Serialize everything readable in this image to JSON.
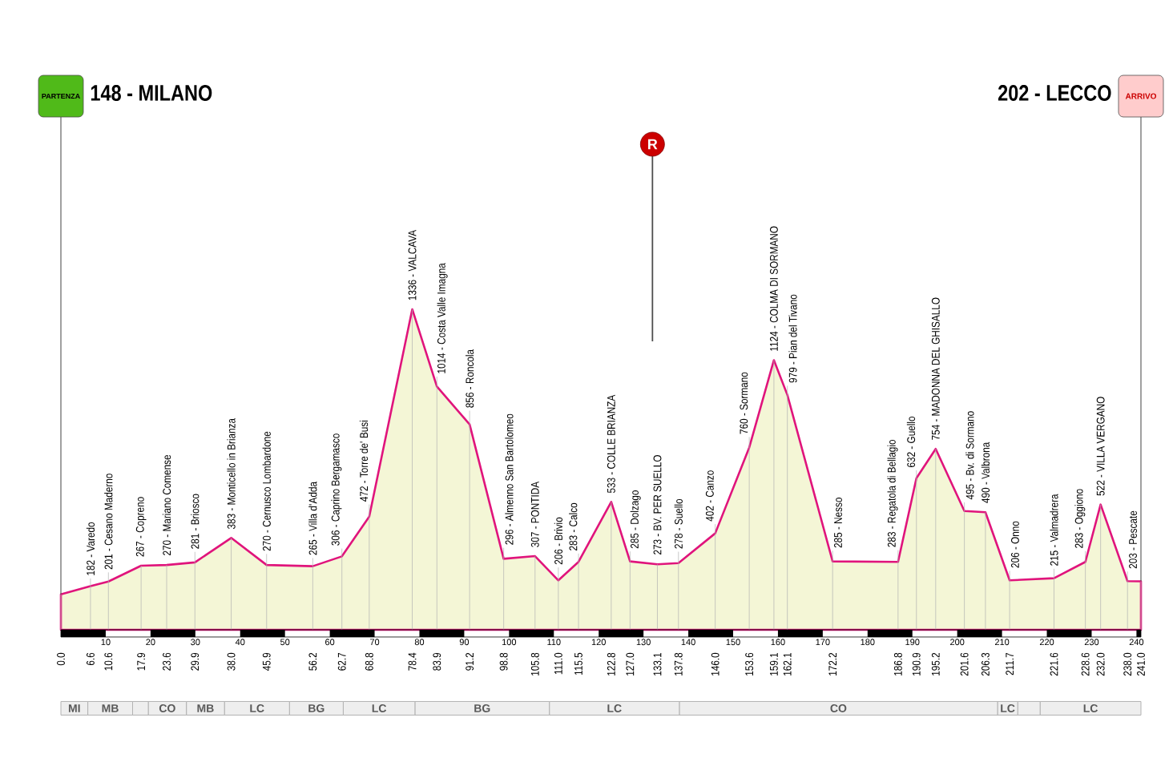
{
  "chart_data": [
    {
      "type": "area",
      "color": "#e0147c",
      "grid": "x",
      "tick_labels": "x",
      "x": [
        0,
        6.6,
        10.6,
        17.9,
        23.6,
        29.9,
        38,
        45.9,
        56.2,
        62.7,
        68.8,
        78.4,
        83.9,
        91.2,
        98.8,
        105.8,
        111,
        115.5,
        122.8,
        127,
        133.1,
        137.8,
        146,
        153.6,
        159.1,
        162.1,
        172.2,
        186.8,
        190.9,
        195.2,
        201.6,
        206.3,
        211.7,
        221.6,
        228.6,
        232,
        238,
        241
      ],
      "values": [
        148,
        182,
        201,
        267,
        270,
        281,
        383,
        270,
        265,
        306,
        472,
        1336,
        1014,
        856,
        296,
        307,
        206,
        283,
        533,
        285,
        273,
        278,
        402,
        760,
        1124,
        979,
        285,
        283,
        632,
        754,
        495,
        490,
        206,
        215,
        283,
        522,
        203,
        202
      ],
      "value_labels": [
        null,
        "182 - Varedo",
        "201 - Cesano Maderno",
        "267 - Copreno",
        "270 - Mariano Comense",
        "281 - Briosco",
        "383 - Monticello in Brianza",
        "270 - Cernusco Lombardone",
        "265 - Villa d'Adda",
        "306 - Caprino Bergamasco",
        "472 - Torre de' Busi",
        "1336 - VALCAVA",
        "1014 - Costa Valle Imagna",
        "856 - Roncola",
        "296 - Almenno San Bartolomeo",
        "307 - PONTIDA",
        "206 - Brivio",
        "283 - Calco",
        "533 - COLLE BRIANZA",
        "285 - Dolzago",
        "273 - BV. PER SUELLO",
        "278 - Suello",
        "402 - Canzo",
        "760 - Sormano",
        "1124 - COLMA DI SORMANO",
        "979 - Pian del Tivano",
        "285 - Nesso",
        "283 - Regatola di Bellagio",
        "632 - Guello",
        "754 - MADONNA DEL GHISALLO",
        "495 - Bv. di Sormano",
        "490 - Valbrona",
        "206 - Onno",
        "215 - Valmadrera",
        "283 - Oggiono",
        "522 - VILLA VERGANO",
        "203 - Pescate",
        null
      ],
      "xlim": [
        0,
        241
      ],
      "xticks": [
        {
          "value": 0,
          "label": "0.0"
        },
        6.6,
        10.6,
        17.9,
        23.6,
        29.9,
        {
          "value": 38,
          "label": "38.0"
        },
        45.9,
        56.2,
        62.7,
        68.8,
        78.4,
        83.9,
        91.2,
        98.8,
        105.8,
        {
          "value": 111,
          "label": "111.0"
        },
        115.5,
        122.8,
        {
          "value": 127,
          "label": "127.0"
        },
        133.1,
        137.8,
        {
          "value": 146,
          "label": "146.0"
        },
        153.6,
        159.1,
        162.1,
        172.2,
        186.8,
        190.9,
        195.2,
        201.6,
        206.3,
        211.7,
        221.6,
        228.6,
        {
          "value": 232,
          "label": "232.0"
        },
        {
          "value": 238,
          "label": "238.0"
        },
        {
          "value": 241,
          "label": "241.0"
        }
      ],
      "x2lim": [
        0,
        241
      ],
      "x2ticks": [
        10,
        20,
        30,
        40,
        50,
        60,
        70,
        80,
        90,
        100,
        110,
        120,
        130,
        140,
        150,
        160,
        170,
        180,
        190,
        200,
        210,
        220,
        230,
        240
      ],
      "ref_lines": [
        {
          "axis": "x",
          "value": 132,
          "label": "R",
          "color": "#4d4d4d"
        }
      ],
      "annotations": [
        "PARTENZA",
        "148 - MILANO",
        "202 - LECCO",
        "ARRIVO"
      ]
    },
    {
      "type": "bar",
      "orientation": "horizontal",
      "stacked": true,
      "categories": [
        null
      ],
      "xlim": [
        0,
        241
      ],
      "tick_labels": false,
      "series": [
        {
          "name": "MI",
          "color": "#eeeeee",
          "values": [
            6
          ]
        },
        {
          "name": "MB",
          "color": "#eeeeee",
          "values": [
            10
          ]
        },
        {
          "color": "#eeeeee",
          "values": [
            3.5
          ]
        },
        {
          "name": "CO",
          "color": "#eeeeee",
          "values": [
            8.5
          ]
        },
        {
          "name": "MB",
          "color": "#eeeeee",
          "values": [
            8.5
          ]
        },
        {
          "name": "LC",
          "color": "#eeeeee",
          "values": [
            14.5
          ]
        },
        {
          "name": "BG",
          "color": "#eeeeee",
          "values": [
            12
          ]
        },
        {
          "name": "LC",
          "color": "#eeeeee",
          "values": [
            16
          ]
        },
        {
          "name": "BG",
          "color": "#eeeeee",
          "values": [
            30
          ]
        },
        {
          "name": "LC",
          "color": "#eeeeee",
          "values": [
            29
          ]
        },
        {
          "name": "CO",
          "color": "#eeeeee",
          "values": [
            71
          ]
        },
        {
          "name": "LC",
          "color": "#eeeeee",
          "values": [
            4.5
          ]
        },
        {
          "color": "#eeeeee",
          "values": [
            5
          ]
        },
        {
          "name": "LC",
          "color": "#eeeeee",
          "values": [
            22.5
          ]
        }
      ]
    }
  ]
}
